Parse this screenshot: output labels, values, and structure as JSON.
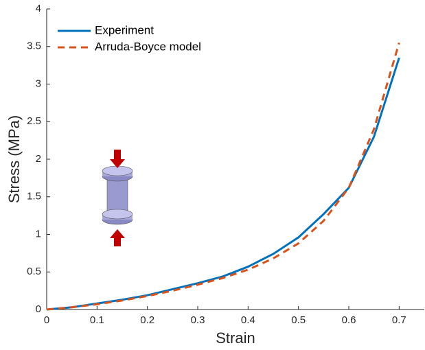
{
  "chart_data": {
    "type": "line",
    "x": [
      0,
      0.05,
      0.1,
      0.15,
      0.2,
      0.25,
      0.3,
      0.35,
      0.4,
      0.45,
      0.5,
      0.55,
      0.6,
      0.65,
      0.7
    ],
    "series": [
      {
        "name": "Experiment",
        "color": "#0072bd",
        "dash": false,
        "values": [
          0,
          0.03,
          0.08,
          0.13,
          0.19,
          0.27,
          0.35,
          0.44,
          0.57,
          0.74,
          0.96,
          1.27,
          1.62,
          2.3,
          3.35
        ]
      },
      {
        "name": "Arruda-Boyce model",
        "color": "#d95319",
        "dash": true,
        "values": [
          0,
          0.03,
          0.07,
          0.12,
          0.18,
          0.25,
          0.33,
          0.42,
          0.53,
          0.68,
          0.88,
          1.18,
          1.62,
          2.4,
          3.55
        ]
      }
    ],
    "xlabel": "Strain",
    "ylabel": "Stress (MPa)",
    "xlim": [
      0,
      0.75
    ],
    "ylim": [
      0,
      4
    ],
    "xticks": [
      0,
      0.1,
      0.2,
      0.3,
      0.4,
      0.5,
      0.6,
      0.7
    ],
    "yticks": [
      0,
      0.5,
      1,
      1.5,
      2,
      2.5,
      3,
      3.5,
      4
    ],
    "grid": false,
    "legend": "top-left"
  }
}
